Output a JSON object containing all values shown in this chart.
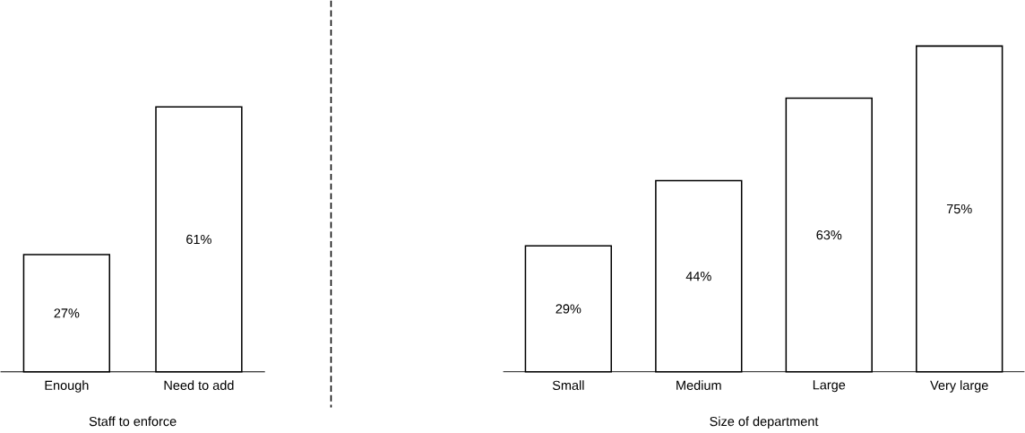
{
  "chart_data": [
    {
      "type": "bar",
      "xlabel": "Staff to enforce",
      "categories": [
        "Enough",
        "Need to add"
      ],
      "values": [
        27,
        61
      ],
      "value_labels": [
        "27%",
        "61%"
      ],
      "color": "#ffffff"
    },
    {
      "type": "bar",
      "xlabel": "Size of department",
      "categories": [
        "Small",
        "Medium",
        "Large",
        "Very large"
      ],
      "values": [
        29,
        44,
        63,
        75
      ],
      "value_labels": [
        "29%",
        "44%",
        "63%",
        "75%"
      ],
      "color": "#ffffff"
    }
  ]
}
